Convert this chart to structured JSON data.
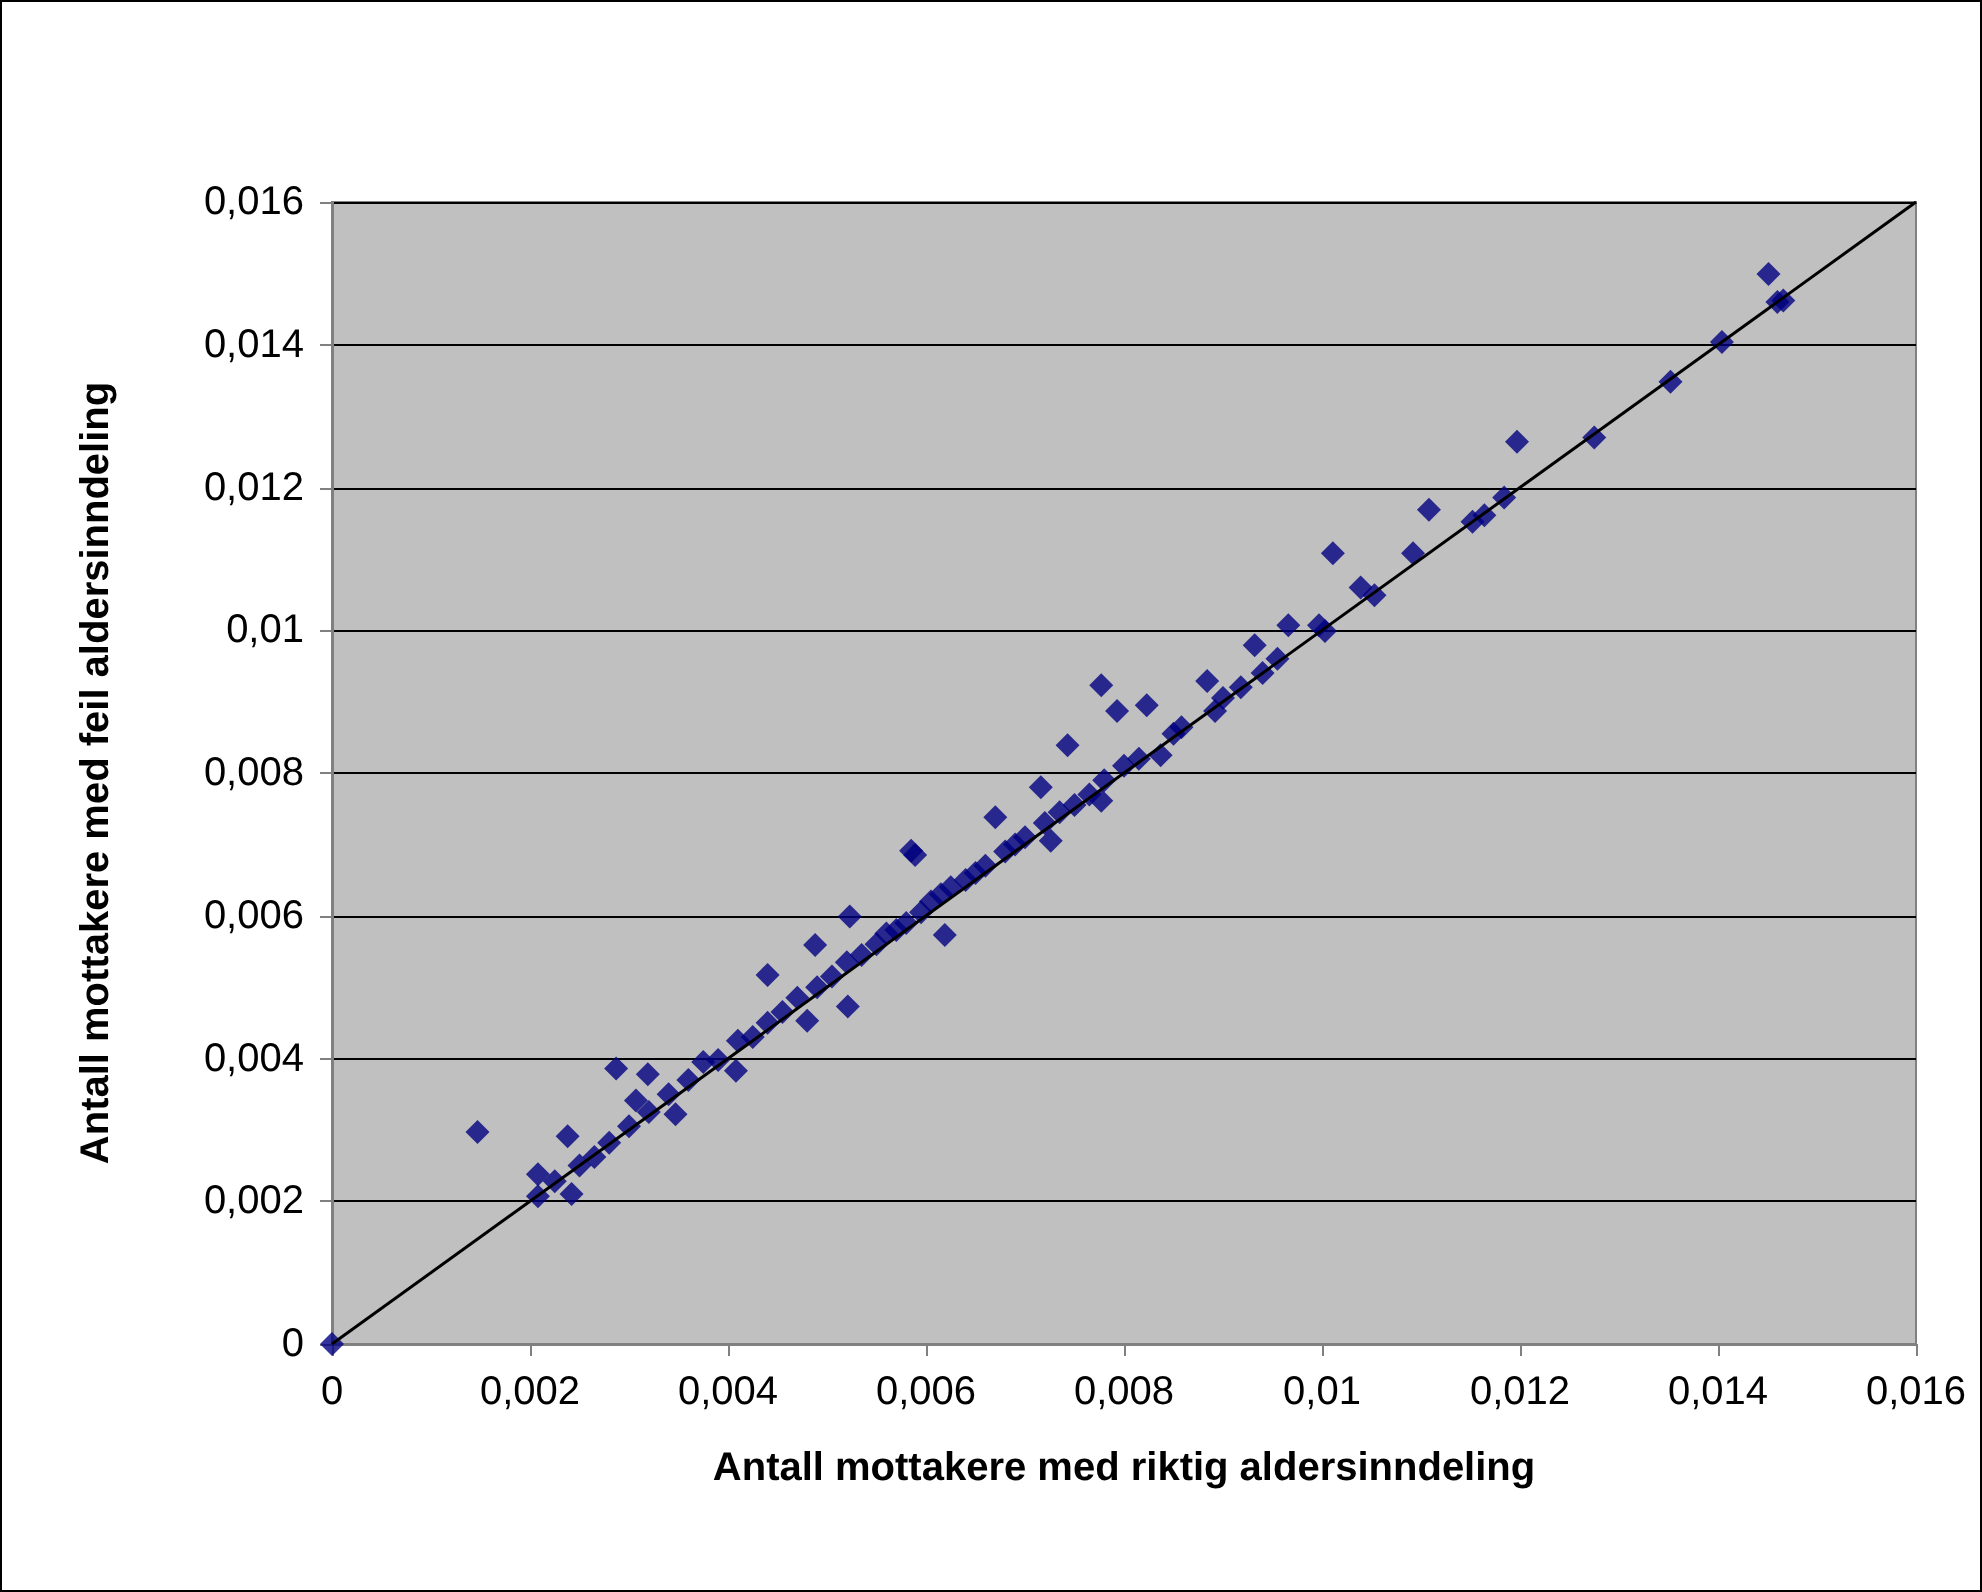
{
  "chart_data": {
    "type": "scatter",
    "xlabel": "Antall mottakere med riktig aldersinndeling",
    "ylabel": "Antall mottakere med feil aldersinndeling",
    "xlim": [
      0,
      0.016
    ],
    "ylim": [
      0,
      0.016
    ],
    "xticks": [
      0,
      {
        "value": 0.002,
        "label": "0,002"
      },
      {
        "value": 0.004,
        "label": "0,004"
      },
      {
        "value": 0.006,
        "label": "0,006"
      },
      {
        "value": 0.008,
        "label": "0,008"
      },
      {
        "value": 0.01,
        "label": "0,01"
      },
      {
        "value": 0.012,
        "label": "0,012"
      },
      {
        "value": 0.014,
        "label": "0,014"
      },
      {
        "value": 0.016,
        "label": "0,016"
      }
    ],
    "yticks": [
      0,
      {
        "value": 0.002,
        "label": "0,002"
      },
      {
        "value": 0.004,
        "label": "0,004"
      },
      {
        "value": 0.006,
        "label": "0,006"
      },
      {
        "value": 0.008,
        "label": "0,008"
      },
      {
        "value": 0.01,
        "label": "0,01"
      },
      {
        "value": 0.012,
        "label": "0,012"
      },
      {
        "value": 0.014,
        "label": "0,014"
      },
      {
        "value": 0.016,
        "label": "0,016"
      }
    ],
    "grid": "y",
    "series": [
      {
        "color": "#000080",
        "marker": "diamond",
        "x": [
          0,
          0.00147,
          0.00208,
          0.00208,
          0.00238,
          0.00242,
          0.00225,
          0.0025,
          0.00265,
          0.0028,
          0.00287,
          0.00319,
          0.00347,
          0.00307,
          0.003,
          0.0032,
          0.0034,
          0.0036,
          0.00375,
          0.0039,
          0.00408,
          0.0041,
          0.00425,
          0.0044,
          0.0044,
          0.00455,
          0.0047,
          0.0048,
          0.00488,
          0.0049,
          0.00505,
          0.00521,
          0.0052,
          0.00523,
          0.00535,
          0.0055,
          0.0056,
          0.0057,
          0.00585,
          0.0058,
          0.00589,
          0.00595,
          0.00605,
          0.00619,
          0.00615,
          0.00625,
          0.0064,
          0.0065,
          0.0066,
          0.0067,
          0.0068,
          0.0069,
          0.007,
          0.00716,
          0.00726,
          0.0072,
          0.00735,
          0.00743,
          0.0075,
          0.00765,
          0.00777,
          0.00777,
          0.0078,
          0.00793,
          0.008,
          0.00815,
          0.00823,
          0.00837,
          0.0085,
          0.00858,
          0.00884,
          0.00892,
          0.009,
          0.00918,
          0.00932,
          0.0094,
          0.00966,
          0.00955,
          0.00997,
          0.01003,
          0.01011,
          0.01039,
          0.01053,
          0.01092,
          0.01108,
          0.01152,
          0.01164,
          0.01184,
          0.01197,
          0.01275,
          0.01352,
          0.01404,
          0.01451,
          0.0146,
          0.01466
        ],
        "values": [
          0,
          0.00297,
          0.00207,
          0.00238,
          0.00291,
          0.0021,
          0.00228,
          0.0025,
          0.00262,
          0.00282,
          0.00386,
          0.00378,
          0.00322,
          0.00341,
          0.00305,
          0.00325,
          0.0035,
          0.0037,
          0.00395,
          0.00398,
          0.00383,
          0.00425,
          0.0043,
          0.00517,
          0.0045,
          0.00465,
          0.00485,
          0.00453,
          0.00559,
          0.005,
          0.00515,
          0.00473,
          0.00535,
          0.00599,
          0.00545,
          0.0056,
          0.00575,
          0.0058,
          0.00691,
          0.0059,
          0.00685,
          0.00605,
          0.0062,
          0.00573,
          0.0063,
          0.0064,
          0.0065,
          0.0066,
          0.0067,
          0.00738,
          0.0069,
          0.007,
          0.0071,
          0.0078,
          0.00705,
          0.0073,
          0.00745,
          0.00839,
          0.00755,
          0.0077,
          0.00761,
          0.00923,
          0.0079,
          0.00887,
          0.0081,
          0.0082,
          0.00895,
          0.00825,
          0.00855,
          0.00864,
          0.00929,
          0.00887,
          0.00905,
          0.0092,
          0.00979,
          0.0094,
          0.01007,
          0.0096,
          0.01007,
          0.00999,
          0.01108,
          0.0106,
          0.01049,
          0.01108,
          0.01169,
          0.01152,
          0.01161,
          0.01186,
          0.01264,
          0.0127,
          0.01348,
          0.01404,
          0.01499,
          0.0146,
          0.01462
        ]
      },
      {
        "type": "line",
        "color": "#000000",
        "marker": "none",
        "line_style": "solid",
        "x": [
          0,
          0.016
        ],
        "values": [
          0,
          0.016
        ]
      }
    ]
  }
}
